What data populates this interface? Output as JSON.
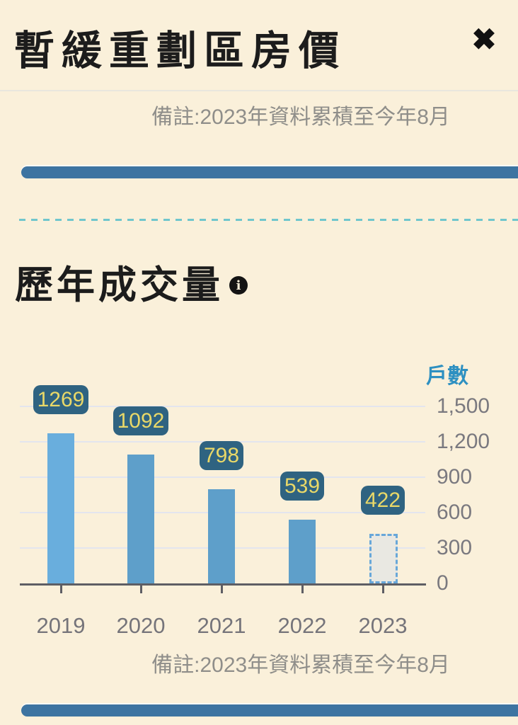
{
  "header": {
    "title": "暫緩重劃區房價",
    "close_label": "✖"
  },
  "notes": {
    "top": "備註:2023年資料累積至今年8月",
    "bottom": "備註:2023年資料累積至今年8月"
  },
  "section": {
    "title": "歷年成交量",
    "info_icon_glyph": "i"
  },
  "chart_data": {
    "type": "bar",
    "title": "歷年成交量",
    "unit_label": "戶數",
    "categories": [
      "2019",
      "2020",
      "2021",
      "2022",
      "2023"
    ],
    "values": [
      1269,
      1092,
      798,
      539,
      422
    ],
    "value_labels": [
      "1269",
      "1092",
      "798",
      "539",
      "422"
    ],
    "ylim": [
      0,
      1500
    ],
    "ytick_labels": [
      "1,500",
      "1,200",
      "900",
      "600",
      "300",
      "0"
    ],
    "ytick_values": [
      1500,
      1200,
      900,
      600,
      300,
      0
    ],
    "grid": true,
    "legend": "none",
    "pending_category": "2023",
    "pending_note": "2023 bar drawn dashed/hollow (partial-year data through August)",
    "note": "備註:2023年資料累積至今年8月"
  },
  "colors": {
    "background": "#faf0da",
    "title_text": "#1c1c1c",
    "note_text": "#8f8e8a",
    "pill_bar": "#3d74a1",
    "dashed_divider": "#70c6cd",
    "bar_2019": "#69aedd",
    "bar_default": "#5e9fca",
    "bar_pending_fill": "#e9e8e2",
    "bar_pending_border": "#68a7d9",
    "badge_background": "#2f6381",
    "badge_text": "#e9d868",
    "axis": "#5e5e64",
    "gridline": "#e3e5ee",
    "axis_label_text": "#7a797f",
    "unit_label_text": "#2e90c1"
  }
}
